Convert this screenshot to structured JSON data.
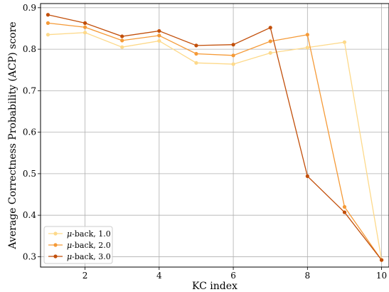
{
  "chart_data": {
    "type": "line",
    "xlabel": "KC index",
    "ylabel": "Average Correctness Probability (ACP) score",
    "xlim": [
      0.8,
      10.2
    ],
    "ylim": [
      0.275,
      0.91
    ],
    "x_ticks": [
      2,
      4,
      6,
      8,
      10
    ],
    "y_ticks": [
      0.3,
      0.4,
      0.5,
      0.6,
      0.7,
      0.8,
      0.9
    ],
    "grid": true,
    "legend_position": "lower-left",
    "x": [
      1,
      2,
      3,
      4,
      5,
      6,
      7,
      8,
      9,
      10
    ],
    "series": [
      {
        "name": "μ-back, 1.0",
        "prefix": "μ",
        "suffix": "-back, 1.0",
        "color": "#fdd98a",
        "values": [
          0.835,
          0.84,
          0.805,
          0.82,
          0.767,
          0.764,
          0.791,
          0.804,
          0.817,
          0.292
        ]
      },
      {
        "name": "μ-back, 2.0",
        "prefix": "μ",
        "suffix": "-back, 2.0",
        "color": "#f59a37",
        "values": [
          0.863,
          0.853,
          0.821,
          0.833,
          0.789,
          0.785,
          0.819,
          0.835,
          0.42,
          0.292
        ]
      },
      {
        "name": "μ-back, 3.0",
        "prefix": "μ",
        "suffix": "-back, 3.0",
        "color": "#c24f0a",
        "values": [
          0.883,
          0.863,
          0.831,
          0.844,
          0.809,
          0.811,
          0.852,
          0.494,
          0.407,
          0.292
        ]
      }
    ]
  }
}
